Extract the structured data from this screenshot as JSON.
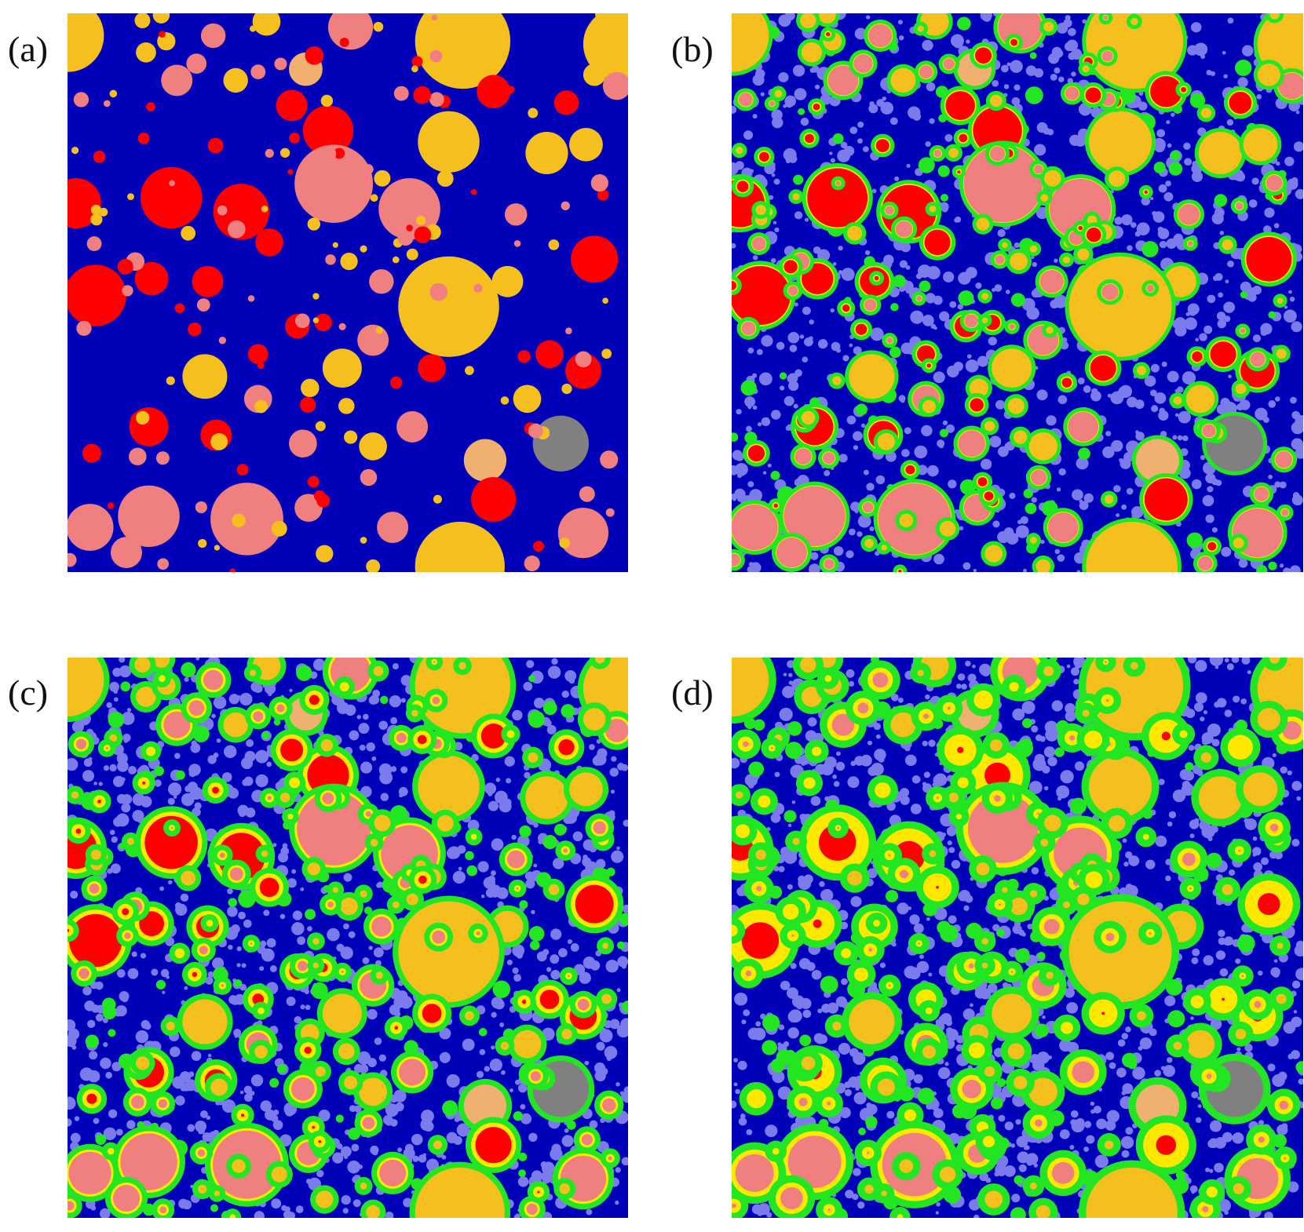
{
  "labels": {
    "a": "(a)",
    "b": "(b)",
    "c": "(c)",
    "d": "(d)"
  },
  "colors": {
    "matrix": "#0000b8",
    "mottle": "#7b7bee",
    "shell_green": "#22e622",
    "shell_yellow": "#ffe800",
    "red": "#ff0000",
    "pink": "#f08080",
    "orange": "#f5c01e",
    "tan": "#f0b070",
    "gray": "#808080"
  }
}
